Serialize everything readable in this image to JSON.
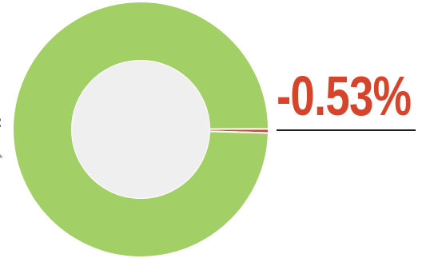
{
  "chart_data": {
    "type": "pie",
    "style": "donut",
    "slices": [
      {
        "label": "",
        "value": 99.47,
        "color": "#a2cf66"
      },
      {
        "label": "",
        "value": 0.53,
        "color": "#d6452b"
      }
    ],
    "highlight": {
      "text": "-0.53%",
      "color": "#d6452b"
    },
    "center_color": "#efefef",
    "legend": "none"
  },
  "edge_text": {
    "colon": ":",
    "star": "*"
  }
}
